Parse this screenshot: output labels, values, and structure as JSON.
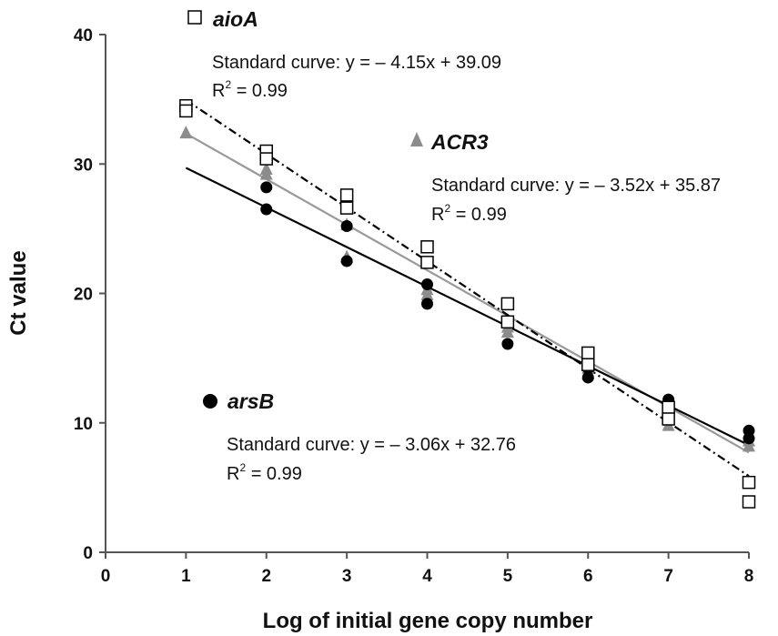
{
  "chart_data": {
    "type": "scatter",
    "xlabel": "Log of initial gene copy number",
    "ylabel": "Ct value",
    "xlim": [
      0,
      8
    ],
    "ylim": [
      0,
      40
    ],
    "xticks": [
      0,
      1,
      2,
      3,
      4,
      5,
      6,
      7,
      8
    ],
    "yticks": [
      0,
      10,
      20,
      30,
      40
    ],
    "grid": false,
    "series": [
      {
        "name": "aioA",
        "marker": "open-square",
        "color": "#000000",
        "line_color": "#000000",
        "line_style": "dash-dot",
        "equation": "Standard curve: y = – 4.15x + 39.09",
        "r2_label": "R",
        "r2_value": " = 0.99",
        "fit": {
          "slope": -4.15,
          "intercept": 39.09
        },
        "points": [
          [
            1,
            34.5
          ],
          [
            1,
            34.1
          ],
          [
            2,
            31.0
          ],
          [
            2,
            30.4
          ],
          [
            3,
            27.6
          ],
          [
            3,
            26.6
          ],
          [
            4,
            23.6
          ],
          [
            4,
            22.4
          ],
          [
            5,
            19.2
          ],
          [
            5,
            17.8
          ],
          [
            6,
            15.4
          ],
          [
            6,
            14.5
          ],
          [
            7,
            11.2
          ],
          [
            7,
            10.3
          ],
          [
            8,
            5.4
          ],
          [
            8,
            3.9
          ]
        ]
      },
      {
        "name": "ACR3",
        "marker": "filled-triangle",
        "color": "#8c8c8c",
        "line_color": "#999999",
        "line_style": "solid",
        "equation": "Standard curve: y = – 3.52x + 35.87",
        "r2_label": "R",
        "r2_value": " = 0.99",
        "fit": {
          "slope": -3.52,
          "intercept": 35.87
        },
        "points": [
          [
            1,
            32.4
          ],
          [
            2,
            29.6
          ],
          [
            2,
            29.2
          ],
          [
            3,
            25.3
          ],
          [
            3,
            22.8
          ],
          [
            4,
            20.3
          ],
          [
            4,
            19.9
          ],
          [
            5,
            17.4
          ],
          [
            5,
            17.0
          ],
          [
            6,
            14.2
          ],
          [
            6,
            13.8
          ],
          [
            7,
            10.4
          ],
          [
            7,
            9.8
          ],
          [
            8,
            8.6
          ],
          [
            8,
            8.2
          ]
        ]
      },
      {
        "name": "arsB",
        "marker": "filled-circle",
        "color": "#000000",
        "line_color": "#000000",
        "line_style": "solid",
        "equation": "Standard curve: y = – 3.06x + 32.76",
        "r2_label": "R",
        "r2_value": " = 0.99",
        "fit": {
          "slope": -3.06,
          "intercept": 32.76
        },
        "points": [
          [
            2,
            28.2
          ],
          [
            2,
            26.5
          ],
          [
            3,
            25.2
          ],
          [
            3,
            22.5
          ],
          [
            4,
            20.7
          ],
          [
            4,
            19.2
          ],
          [
            5,
            16.1
          ],
          [
            6,
            14.2
          ],
          [
            6,
            13.5
          ],
          [
            7,
            11.8
          ],
          [
            7,
            11.4
          ],
          [
            8,
            9.4
          ],
          [
            8,
            8.8
          ]
        ]
      }
    ]
  }
}
